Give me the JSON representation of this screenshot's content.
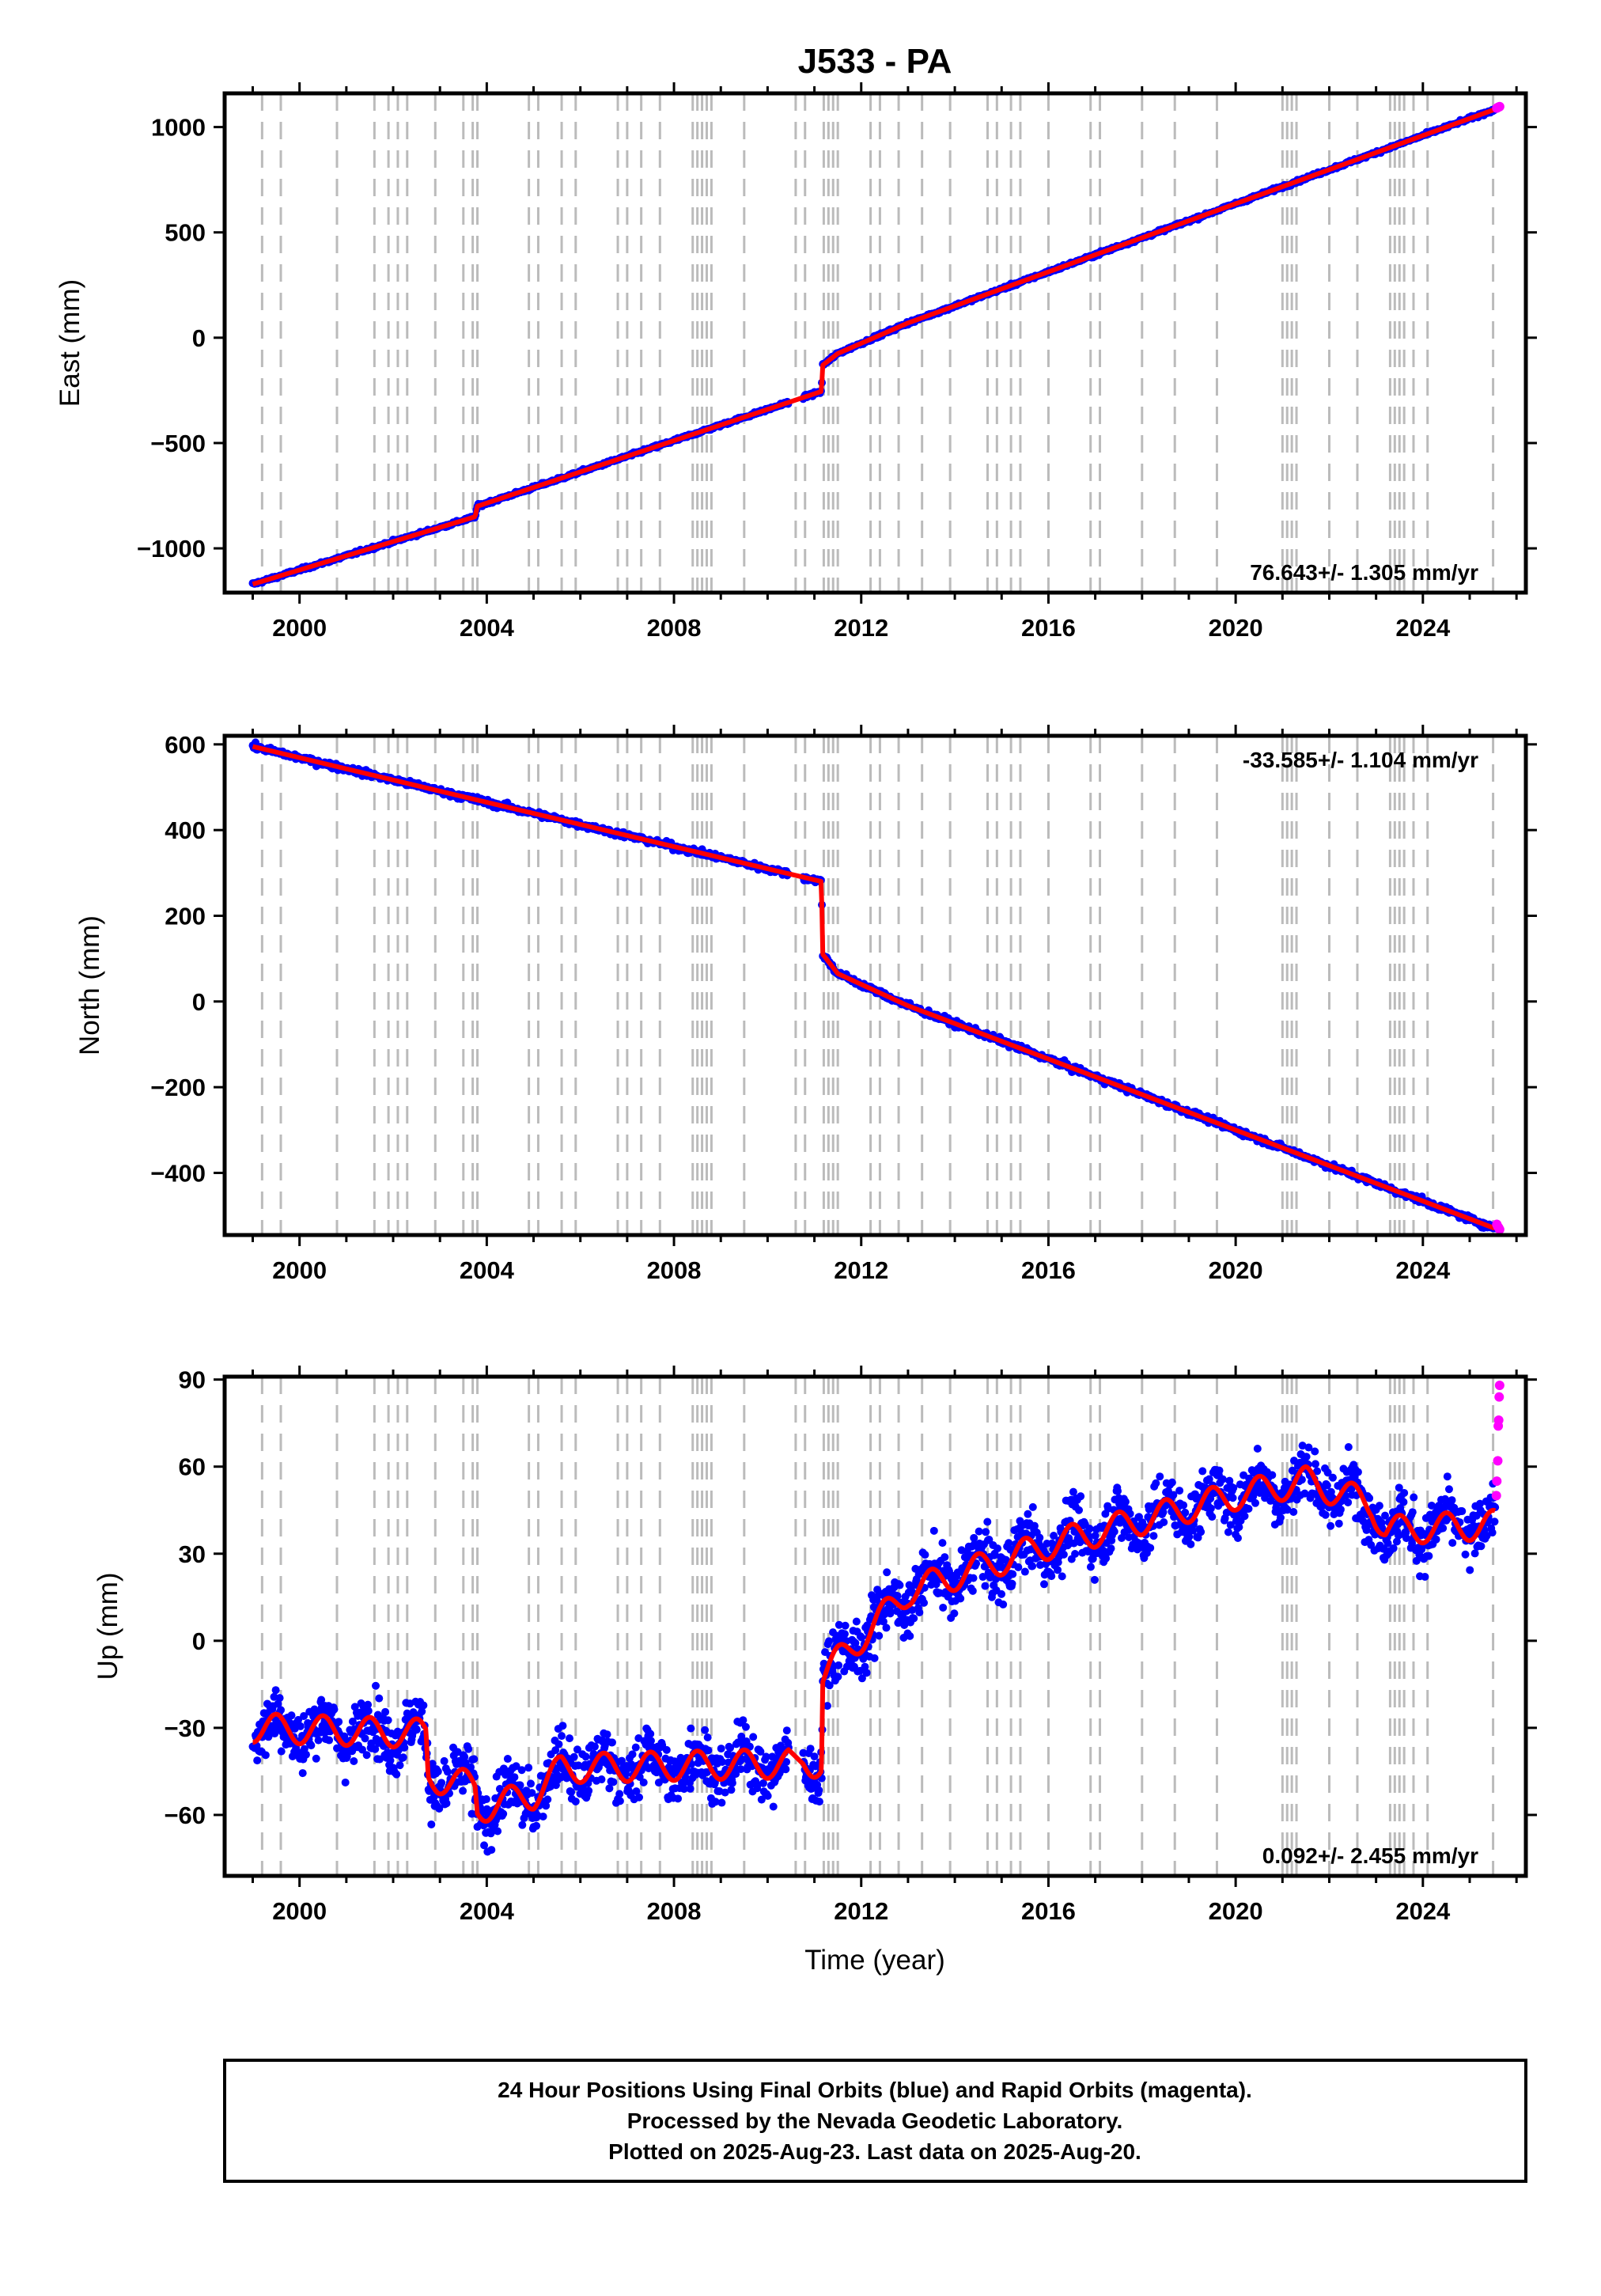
{
  "title": "J533 - PA",
  "xlabel": "Time (year)",
  "footer": {
    "line1": "24 Hour Positions Using Final Orbits (blue) and Rapid Orbits (magenta).",
    "line2": "Processed by the Nevada Geodetic Laboratory.",
    "line3": "Plotted on 2025-Aug-23. Last data on 2025-Aug-20."
  },
  "colors": {
    "final_orbits": "#0000ff",
    "rapid_orbits": "#ff00ff",
    "model_fit": "#ff0000",
    "event_lines": "#bbbbbb"
  },
  "chart_data": [
    {
      "type": "scatter",
      "name": "east",
      "ylabel": "East (mm)",
      "rate": "76.643+/- 1.305 mm/yr",
      "rate_position": "bottom-right",
      "xlim": [
        1998.4,
        2026.2
      ],
      "ylim": [
        -1210,
        1160
      ],
      "xticks": [
        2000,
        2004,
        2008,
        2012,
        2016,
        2020,
        2024
      ],
      "yticks": [
        -1000,
        -500,
        0,
        500,
        1000
      ],
      "ytick_labels": [
        "−1000",
        "−500",
        "0",
        "500",
        "1000"
      ],
      "xtick_labels": [
        "2000",
        "2004",
        "2008",
        "2012",
        "2016",
        "2020",
        "2024"
      ],
      "series_final_keyframes": [
        [
          1999.0,
          -1170
        ],
        [
          2003.75,
          -850
        ],
        [
          2003.8,
          -800
        ],
        [
          2011.15,
          -255
        ],
        [
          2011.18,
          -130
        ],
        [
          2011.5,
          -75
        ],
        [
          2013.0,
          70
        ],
        [
          2025.55,
          1085
        ]
      ],
      "series_rapid_x": [
        2025.58,
        2025.6,
        2025.62,
        2025.64
      ],
      "series_rapid_y": [
        1090,
        1093,
        1095,
        1097
      ]
    },
    {
      "type": "scatter",
      "name": "north",
      "ylabel": "North (mm)",
      "rate": "-33.585+/- 1.104 mm/yr",
      "rate_position": "top-right",
      "xlim": [
        1998.4,
        2026.2
      ],
      "ylim": [
        -545,
        620
      ],
      "xticks": [
        2000,
        2004,
        2008,
        2012,
        2016,
        2020,
        2024
      ],
      "yticks": [
        -400,
        -200,
        0,
        200,
        400,
        600
      ],
      "ytick_labels": [
        "−400",
        "−200",
        "0",
        "200",
        "400",
        "600"
      ],
      "xtick_labels": [
        "2000",
        "2004",
        "2008",
        "2012",
        "2016",
        "2020",
        "2024"
      ],
      "series_final_keyframes": [
        [
          1999.0,
          595
        ],
        [
          2003.8,
          470
        ],
        [
          2011.15,
          280
        ],
        [
          2011.18,
          110
        ],
        [
          2011.5,
          65
        ],
        [
          2013.0,
          -10
        ],
        [
          2025.55,
          -530
        ]
      ],
      "series_rapid_x": [
        2025.58,
        2025.6,
        2025.62,
        2025.64
      ],
      "series_rapid_y": [
        -520,
        -525,
        -528,
        -532
      ]
    },
    {
      "type": "scatter",
      "name": "up",
      "ylabel": "Up (mm)",
      "rate": "0.092+/- 2.455 mm/yr",
      "rate_position": "bottom-right",
      "xlim": [
        1998.4,
        2026.2
      ],
      "ylim": [
        -81,
        91
      ],
      "xticks": [
        2000,
        2004,
        2008,
        2012,
        2016,
        2020,
        2024
      ],
      "yticks": [
        -60,
        -30,
        0,
        30,
        60,
        90
      ],
      "ytick_labels": [
        "−60",
        "−30",
        "0",
        "30",
        "60",
        "90"
      ],
      "xtick_labels": [
        "2000",
        "2004",
        "2008",
        "2012",
        "2016",
        "2020",
        "2024"
      ],
      "series_final_keyframes": [
        [
          1999.0,
          -30
        ],
        [
          2002.7,
          -32
        ],
        [
          2002.75,
          -47
        ],
        [
          2003.75,
          -50
        ],
        [
          2003.8,
          -58
        ],
        [
          2005.0,
          -53
        ],
        [
          2005.6,
          -44
        ],
        [
          2011.15,
          -42
        ],
        [
          2011.18,
          -12
        ],
        [
          2013.0,
          17
        ],
        [
          2016.0,
          33
        ],
        [
          2020.0,
          50
        ],
        [
          2021.5,
          55
        ],
        [
          2022.9,
          47
        ],
        [
          2023.2,
          38
        ],
        [
          2025.55,
          40
        ]
      ],
      "series_rapid_x": [
        2025.57,
        2025.58,
        2025.6,
        2025.61,
        2025.62,
        2025.63,
        2025.64
      ],
      "series_rapid_y": [
        50,
        55,
        62,
        74,
        76,
        84,
        88
      ]
    }
  ],
  "event_lines": [
    1999.2,
    1999.6,
    2000.8,
    2001.6,
    2001.9,
    2002.1,
    2002.3,
    2002.9,
    2003.5,
    2003.7,
    2003.8,
    2004.9,
    2005.1,
    2005.6,
    2005.9,
    2006.8,
    2007.0,
    2007.3,
    2007.7,
    2008.4,
    2008.5,
    2008.6,
    2008.7,
    2008.8,
    2009.5,
    2010.6,
    2010.8,
    2011.2,
    2011.3,
    2011.4,
    2011.5,
    2012.2,
    2012.4,
    2012.8,
    2013.3,
    2013.9,
    2014.7,
    2014.9,
    2015.2,
    2015.4,
    2016.0,
    2016.9,
    2017.1,
    2018.0,
    2018.7,
    2019.6,
    2021.0,
    2021.1,
    2021.2,
    2021.3,
    2022.0,
    2022.6,
    2023.3,
    2023.4,
    2023.5,
    2023.6,
    2023.8,
    2024.1,
    2025.5
  ]
}
